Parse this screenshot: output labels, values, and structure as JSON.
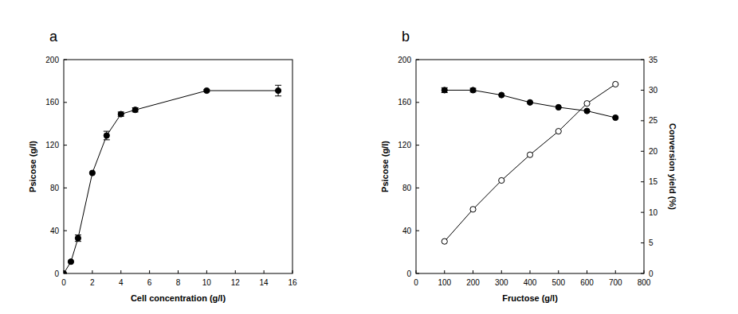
{
  "chart_data": [
    {
      "type": "line",
      "title": "a",
      "x_label": "Cell concentration (g/l)",
      "y_label": "Psicose (g/l)",
      "x": [
        0,
        0.5,
        1,
        2,
        3,
        4,
        5,
        10,
        15
      ],
      "series": [
        {
          "color": "#000000",
          "marker": "circle",
          "axis": "y",
          "values": [
            0,
            11,
            33,
            94,
            129,
            149,
            153,
            171,
            171
          ],
          "errors": [
            0,
            0,
            3,
            0,
            4,
            2,
            2,
            1,
            5
          ]
        }
      ],
      "xlim": [
        0,
        16
      ],
      "xticks": [
        0,
        2,
        4,
        6,
        8,
        10,
        12,
        14,
        16
      ],
      "ylim": [
        0,
        200
      ],
      "yticks": [
        0,
        40,
        80,
        120,
        160,
        200
      ],
      "grid": false
    },
    {
      "type": "line",
      "title": "b",
      "x_label": "Fructose (g/l)",
      "y_label": "Psicose (g/l)",
      "y2_label": "Conversion yield (%)",
      "x": [
        100,
        200,
        300,
        400,
        500,
        600,
        700
      ],
      "series": [
        {
          "color": "#000000",
          "marker": "circle",
          "axis": "y2",
          "values": [
            30,
            30,
            29.2,
            28,
            27.2,
            26.6,
            25.5
          ],
          "errors": [
            0.4,
            0.3,
            0,
            0,
            0,
            0,
            0
          ]
        },
        {
          "color": "#000000",
          "marker": "open-circle",
          "axis": "y",
          "values": [
            30,
            60,
            87,
            111,
            133,
            159,
            177
          ]
        }
      ],
      "xlim": [
        0,
        800
      ],
      "xticks": [
        0,
        100,
        200,
        300,
        400,
        500,
        600,
        700,
        800
      ],
      "ylim": [
        0,
        200
      ],
      "yticks": [
        0,
        40,
        80,
        120,
        160,
        200
      ],
      "y2lim": [
        0,
        35
      ],
      "y2ticks": [
        0,
        5,
        10,
        15,
        20,
        25,
        30,
        35
      ],
      "grid": false
    }
  ]
}
